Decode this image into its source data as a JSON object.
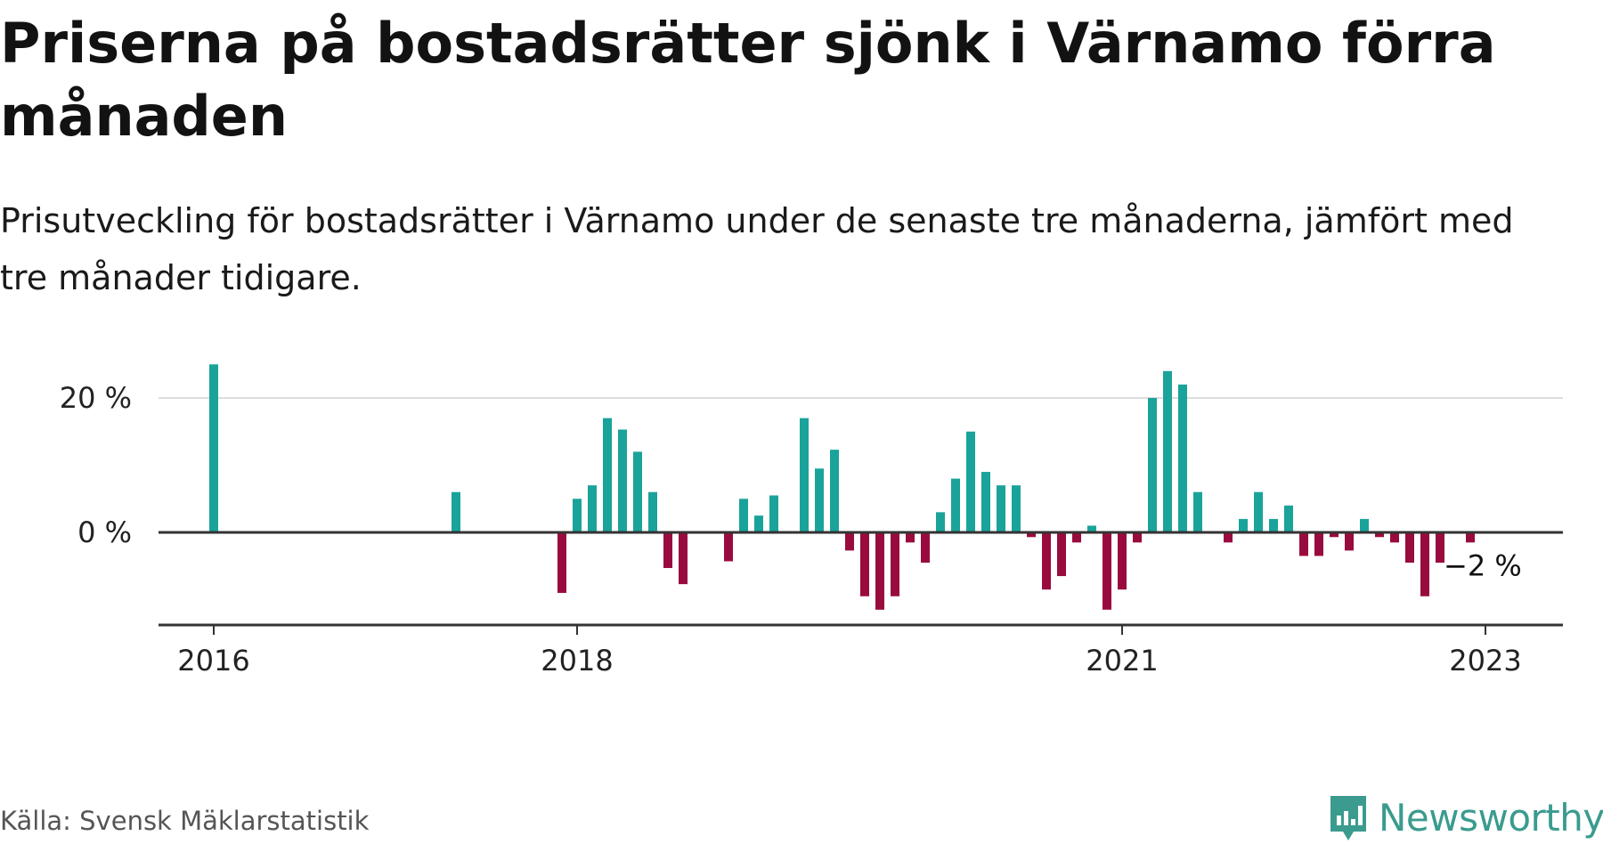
{
  "header": {
    "title": "Priserna på bostadsrätter sjönk i Värnamo förra månaden",
    "subtitle": "Prisutveckling för bostadsrätter i Värnamo under de senaste tre månaderna, jämfört med tre månader tidigare."
  },
  "footer": {
    "source": "Källa: Svensk Mäklarstatistik",
    "brand": "Newsworthy"
  },
  "colors": {
    "positive": "#1aa39a",
    "negative": "#990b3e",
    "axis": "#333333",
    "grid": "#dddddd"
  },
  "chart_data": {
    "type": "bar",
    "title": "",
    "xlabel": "",
    "ylabel": "",
    "ylim": [
      -14,
      25
    ],
    "yticks": [
      {
        "value": 0,
        "label": "0 %"
      },
      {
        "value": 20,
        "label": "20 %"
      }
    ],
    "xticks": [
      {
        "date": "2016-01",
        "label": "2016"
      },
      {
        "date": "2018-01",
        "label": "2018"
      },
      {
        "date": "2021-01",
        "label": "2021"
      },
      {
        "date": "2023-01",
        "label": "2023"
      }
    ],
    "grid": "horizontal",
    "annotation": {
      "date": "2022-12",
      "label": "−2 %"
    },
    "series": [
      {
        "points": [
          [
            "2016-01",
            25
          ],
          [
            "2017-05",
            6
          ],
          [
            "2017-12",
            -9
          ],
          [
            "2018-01",
            5
          ],
          [
            "2018-02",
            7
          ],
          [
            "2018-03",
            17
          ],
          [
            "2018-04",
            15.3
          ],
          [
            "2018-05",
            12
          ],
          [
            "2018-06",
            6
          ],
          [
            "2018-07",
            -5.3
          ],
          [
            "2018-08",
            -7.7
          ],
          [
            "2018-11",
            -4.3
          ],
          [
            "2018-12",
            5
          ],
          [
            "2019-01",
            2.5
          ],
          [
            "2019-02",
            5.5
          ],
          [
            "2019-04",
            17
          ],
          [
            "2019-05",
            9.5
          ],
          [
            "2019-06",
            12.3
          ],
          [
            "2019-07",
            -2.7
          ],
          [
            "2019-08",
            -9.5
          ],
          [
            "2019-09",
            -11.5
          ],
          [
            "2019-10",
            -9.5
          ],
          [
            "2019-11",
            -1.5
          ],
          [
            "2019-12",
            -4.5
          ],
          [
            "2020-01",
            3
          ],
          [
            "2020-02",
            8
          ],
          [
            "2020-03",
            15
          ],
          [
            "2020-04",
            9
          ],
          [
            "2020-05",
            7
          ],
          [
            "2020-06",
            7
          ],
          [
            "2020-07",
            -0.7
          ],
          [
            "2020-08",
            -8.5
          ],
          [
            "2020-09",
            -6.5
          ],
          [
            "2020-10",
            -1.5
          ],
          [
            "2020-11",
            1
          ],
          [
            "2020-12",
            -11.5
          ],
          [
            "2021-01",
            -8.5
          ],
          [
            "2021-02",
            -1.5
          ],
          [
            "2021-03",
            20
          ],
          [
            "2021-04",
            24
          ],
          [
            "2021-05",
            22
          ],
          [
            "2021-06",
            6
          ],
          [
            "2021-08",
            -1.5
          ],
          [
            "2021-09",
            2
          ],
          [
            "2021-10",
            6
          ],
          [
            "2021-11",
            2
          ],
          [
            "2021-12",
            4
          ],
          [
            "2022-01",
            -3.5
          ],
          [
            "2022-02",
            -3.5
          ],
          [
            "2022-03",
            -0.7
          ],
          [
            "2022-04",
            -2.7
          ],
          [
            "2022-05",
            2
          ],
          [
            "2022-06",
            -0.7
          ],
          [
            "2022-07",
            -1.5
          ],
          [
            "2022-08",
            -4.5
          ],
          [
            "2022-09",
            -9.5
          ],
          [
            "2022-10",
            -4.5
          ],
          [
            "2022-12",
            -1.5
          ]
        ]
      }
    ]
  }
}
